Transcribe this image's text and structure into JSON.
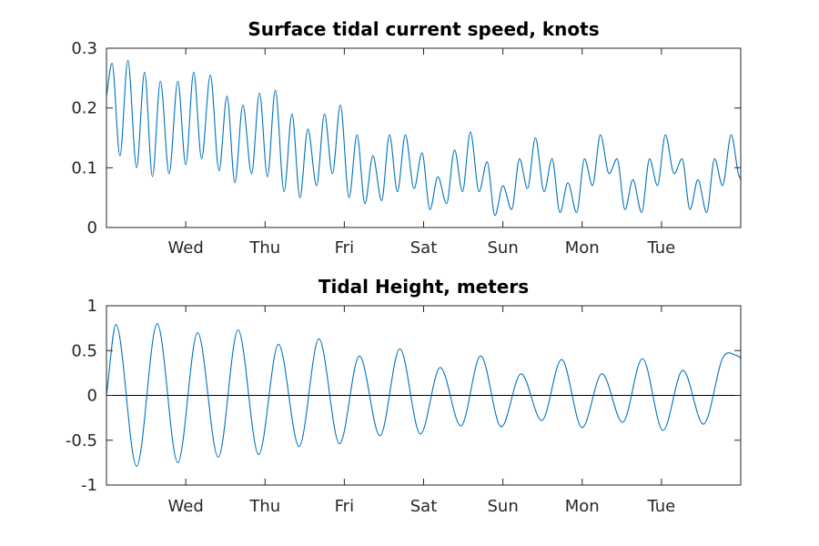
{
  "chart_data": [
    {
      "type": "line",
      "title": "Surface tidal current speed, knots",
      "xlabel": "",
      "ylabel": "",
      "x_tick_labels": [
        "Wed",
        "Thu",
        "Fri",
        "Sat",
        "Sun",
        "Mon",
        "Tue"
      ],
      "x_tick_days": [
        1,
        2,
        3,
        4,
        5,
        6,
        7
      ],
      "xlim_days": [
        0,
        8
      ],
      "ylim": [
        0,
        0.3
      ],
      "y_ticks": [
        0,
        0.1,
        0.2,
        0.3
      ],
      "y_tick_labels": [
        "0",
        "0.1",
        "0.2",
        "0.3"
      ],
      "grid": false,
      "zero_line": false,
      "series_color": "#0072BD",
      "series": [
        {
          "name": "",
          "x_days": [
            0.0,
            0.07,
            0.17,
            0.27,
            0.38,
            0.48,
            0.58,
            0.68,
            0.79,
            0.9,
            1.0,
            1.1,
            1.2,
            1.31,
            1.42,
            1.52,
            1.62,
            1.72,
            1.83,
            1.93,
            2.03,
            2.13,
            2.24,
            2.34,
            2.44,
            2.54,
            2.65,
            2.75,
            2.85,
            2.95,
            3.06,
            3.16,
            3.26,
            3.36,
            3.47,
            3.57,
            3.67,
            3.77,
            3.88,
            3.98,
            4.08,
            4.18,
            4.29,
            4.39,
            4.49,
            4.59,
            4.7,
            4.8,
            4.9,
            5.0,
            5.11,
            5.21,
            5.31,
            5.41,
            5.52,
            5.62,
            5.72,
            5.82,
            5.93,
            6.03,
            6.13,
            6.23,
            6.34,
            6.44,
            6.54,
            6.64,
            6.75,
            6.85,
            6.95,
            7.05,
            7.16,
            7.26,
            7.36,
            7.46,
            7.57,
            7.67,
            7.77,
            7.88,
            7.97,
            8.0
          ],
          "values": [
            0.22,
            0.275,
            0.12,
            0.28,
            0.1,
            0.26,
            0.085,
            0.245,
            0.09,
            0.245,
            0.105,
            0.26,
            0.115,
            0.255,
            0.095,
            0.22,
            0.075,
            0.205,
            0.09,
            0.225,
            0.085,
            0.23,
            0.06,
            0.19,
            0.05,
            0.165,
            0.07,
            0.19,
            0.09,
            0.205,
            0.05,
            0.155,
            0.04,
            0.12,
            0.045,
            0.155,
            0.06,
            0.155,
            0.065,
            0.125,
            0.03,
            0.085,
            0.04,
            0.13,
            0.06,
            0.16,
            0.06,
            0.11,
            0.02,
            0.07,
            0.03,
            0.115,
            0.065,
            0.15,
            0.06,
            0.115,
            0.025,
            0.075,
            0.025,
            0.115,
            0.07,
            0.155,
            0.09,
            0.115,
            0.03,
            0.08,
            0.025,
            0.115,
            0.07,
            0.155,
            0.09,
            0.115,
            0.03,
            0.08,
            0.025,
            0.115,
            0.07,
            0.155,
            0.09,
            0.08
          ]
        }
      ]
    },
    {
      "type": "line",
      "title": "Tidal Height, meters",
      "xlabel": "",
      "ylabel": "",
      "x_tick_labels": [
        "Wed",
        "Thu",
        "Fri",
        "Sat",
        "Sun",
        "Mon",
        "Tue"
      ],
      "x_tick_days": [
        1,
        2,
        3,
        4,
        5,
        6,
        7
      ],
      "xlim_days": [
        0,
        8
      ],
      "ylim": [
        -1,
        1
      ],
      "y_ticks": [
        -1,
        -0.5,
        0,
        0.5,
        1
      ],
      "y_tick_labels": [
        "-1",
        "-0.5",
        "0",
        "0.5",
        "1"
      ],
      "grid": false,
      "zero_line": true,
      "series_color": "#0072BD",
      "series": [
        {
          "name": "",
          "x_days": [
            0.0,
            0.12,
            0.38,
            0.64,
            0.9,
            1.15,
            1.41,
            1.66,
            1.92,
            2.17,
            2.43,
            2.68,
            2.94,
            3.19,
            3.45,
            3.7,
            3.96,
            4.21,
            4.47,
            4.72,
            4.98,
            5.23,
            5.49,
            5.74,
            6.0,
            6.25,
            6.51,
            6.76,
            7.02,
            7.27,
            7.53,
            7.78,
            7.97,
            8.0
          ],
          "values": [
            0.0,
            0.79,
            -0.79,
            0.8,
            -0.75,
            0.7,
            -0.69,
            0.73,
            -0.66,
            0.57,
            -0.57,
            0.63,
            -0.54,
            0.44,
            -0.45,
            0.52,
            -0.43,
            0.31,
            -0.34,
            0.44,
            -0.35,
            0.24,
            -0.28,
            0.4,
            -0.36,
            0.24,
            -0.3,
            0.41,
            -0.39,
            0.28,
            -0.32,
            0.43,
            0.44,
            0.41
          ]
        }
      ]
    }
  ]
}
